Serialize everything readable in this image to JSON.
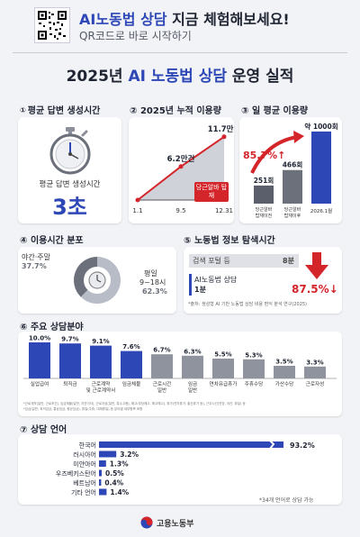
{
  "header": {
    "headline_blue": "AI노동법 상담",
    "headline_rest": " 지금 체험해보세요!",
    "subline": "QR코드로 바로 시작하기",
    "main_title_pre": "2025년 ",
    "main_title_blue": "AI 노동법 상담",
    "main_title_post": " 운영 실적"
  },
  "section1": {
    "num": "①",
    "title": "평균 답변 생성시간",
    "label": "평균 답변 생성시간",
    "value": "3초"
  },
  "section2": {
    "num": "②",
    "title": "2025년 누적 이용량",
    "callout": "당근알바 탑재"
  },
  "section3": {
    "num": "③",
    "title": "일 평균 이용량",
    "growth": "85.7%↑"
  },
  "section4": {
    "num": "④",
    "title": "이용시간 분포",
    "weekend_label": "야간·주말",
    "weekend_value": "37.7%",
    "weekday_label_1": "평일",
    "weekday_label_2": "9~18시",
    "weekday_value": "62.3%"
  },
  "section5": {
    "num": "⑤",
    "title": "노동법 정보 탐색시간",
    "portal_label": "검색 포털 등",
    "portal_value": "8분",
    "ai_label": "AI노동법 상담",
    "ai_value": "1분",
    "reduction": "87.5%↓",
    "source": "*출처: 생성형 AI 기반 노동법 상담 비용 편익 분석 연구(2025)"
  },
  "section6": {
    "num": "⑥",
    "title": "주요 상담분야",
    "footnote_1": "*근로계약(일반, 근로조건), 임금체불(일반, 지연이자), 근로자성(일반, 특수고용), 해고(부당해고, 해고예고), 휴가(연차휴가, 출산휴가 등), 근무시간(연장, 야간, 휴일) 등",
    "footnote_2": "*임금(일반, 최저임금, 통상임금, 평균임금), 휴일(주휴, 대체휴일) 등 분야별 세부항목 포함"
  },
  "section7": {
    "num": "⑦",
    "title": "상담 언어",
    "note": "*34개 언어로 상담 가능"
  },
  "footer": {
    "ministry": "고용노동부"
  },
  "colors": {
    "primary": "#2d47b6",
    "red": "#d4252b",
    "gray": "#9ea3ad",
    "dark": "#1f2433"
  },
  "chart_data": [
    {
      "type": "line",
      "title": "2025년 누적 이용량",
      "x": [
        "1.1",
        "9.5",
        "12.31"
      ],
      "values": [
        0,
        6.2,
        11.7
      ],
      "point_labels": [
        "",
        "6.2만건",
        "11.7만건"
      ]
    },
    {
      "type": "bar",
      "title": "일 평균 이용량",
      "categories": [
        "당근알바 탑재이전",
        "당근알바 탑재이후",
        "2026.1월"
      ],
      "values": [
        251,
        466,
        1000
      ],
      "labels": [
        "251회",
        "466회",
        "약 1000회"
      ]
    },
    {
      "type": "pie",
      "title": "이용시간 분포",
      "categories": [
        "야간·주말",
        "평일 9~18시"
      ],
      "values": [
        37.7,
        62.3
      ]
    },
    {
      "type": "bar",
      "title": "노동법 정보 탐색시간",
      "categories": [
        "검색 포털 등",
        "AI노동법 상담"
      ],
      "values": [
        8,
        1
      ],
      "unit": "분"
    },
    {
      "type": "bar",
      "title": "주요 상담분야",
      "categories": [
        "실업급여",
        "퇴직금",
        "근로계약 및 근로계약서",
        "임금체불",
        "근로시간 일반",
        "임금 일반",
        "연차유급휴가",
        "주휴수당",
        "가산수당",
        "근로자성"
      ],
      "values": [
        10.0,
        9.7,
        9.1,
        7.6,
        6.7,
        6.3,
        5.5,
        5.3,
        3.5,
        3.3
      ],
      "labels": [
        "10.0%",
        "9.7%",
        "9.1%",
        "7.6%",
        "6.7%",
        "6.3%",
        "5.5%",
        "5.3%",
        "3.5%",
        "3.3%"
      ]
    },
    {
      "type": "bar",
      "title": "상담 언어",
      "categories": [
        "한국어",
        "러시아어",
        "미얀마어",
        "우즈베키스탄어",
        "베트남어",
        "기타 언어"
      ],
      "values": [
        93.2,
        3.2,
        1.3,
        0.5,
        0.4,
        1.4
      ],
      "labels": [
        "93.2%",
        "3.2%",
        "1.3%",
        "0.5%",
        "0.4%",
        "1.4%"
      ]
    }
  ]
}
